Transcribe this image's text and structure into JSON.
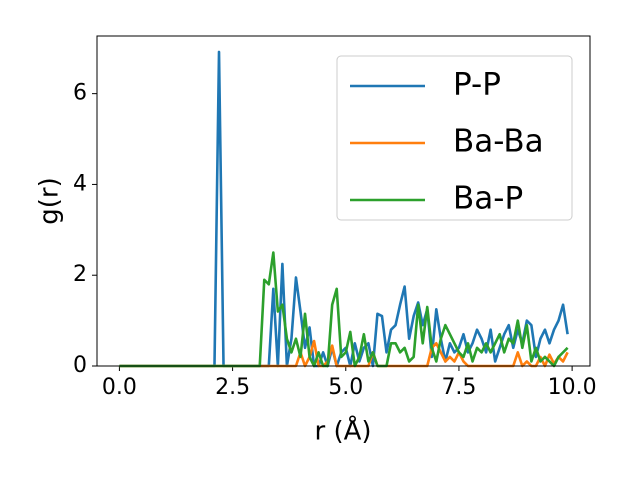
{
  "chart_data": {
    "type": "line",
    "xlabel": "r (Å)",
    "ylabel": "g(r)",
    "x": [
      0,
      0.1,
      0.2,
      0.3,
      0.4,
      0.5,
      0.6,
      0.7,
      0.8,
      0.9,
      1,
      1.1,
      1.2,
      1.3,
      1.4,
      1.5,
      1.6,
      1.7,
      1.8,
      1.9,
      2,
      2.1,
      2.2,
      2.3,
      2.4,
      2.5,
      2.6,
      2.7,
      2.8,
      2.9,
      3,
      3.1,
      3.2,
      3.3,
      3.4,
      3.5,
      3.6,
      3.7,
      3.8,
      3.9,
      4,
      4.1,
      4.2,
      4.3,
      4.4,
      4.5,
      4.6,
      4.7,
      4.8,
      4.9,
      5,
      5.1,
      5.2,
      5.3,
      5.4,
      5.5,
      5.6,
      5.7,
      5.8,
      5.9,
      6,
      6.1,
      6.2,
      6.3,
      6.4,
      6.5,
      6.6,
      6.7,
      6.8,
      6.9,
      7,
      7.1,
      7.2,
      7.3,
      7.4,
      7.5,
      7.6,
      7.7,
      7.8,
      7.9,
      8,
      8.1,
      8.2,
      8.3,
      8.4,
      8.5,
      8.6,
      8.7,
      8.8,
      8.9,
      9,
      9.1,
      9.2,
      9.3,
      9.4,
      9.5,
      9.6,
      9.7,
      9.8,
      9.9
    ],
    "series": [
      {
        "name": "P-P",
        "color": "#1f77b4",
        "values": [
          0,
          0,
          0,
          0,
          0,
          0,
          0,
          0,
          0,
          0,
          0,
          0,
          0,
          0,
          0,
          0,
          0,
          0,
          0,
          0,
          0,
          0,
          6.92,
          0,
          0,
          0,
          0,
          0,
          0,
          0,
          0,
          0,
          0,
          0,
          1.7,
          0,
          2.25,
          0,
          0.6,
          1.95,
          1.2,
          0.4,
          0.85,
          0,
          0,
          0.3,
          0,
          0.4,
          0,
          0.3,
          0.4,
          0,
          0.5,
          0.1,
          0.4,
          0.5,
          0,
          1.15,
          1.1,
          0.3,
          0.8,
          0.9,
          1.35,
          1.75,
          0.6,
          1.1,
          1.4,
          0.9,
          1.25,
          0.2,
          1.25,
          0.6,
          0.1,
          0.5,
          0.3,
          0.4,
          0.7,
          0.3,
          0.5,
          0.8,
          0.6,
          0.3,
          0.8,
          0.1,
          0.4,
          0.7,
          0.9,
          0.4,
          0.8,
          0.5,
          1.0,
          0.9,
          0.2,
          0.6,
          0.8,
          0.5,
          0.8,
          1.0,
          1.35,
          0.7
        ]
      },
      {
        "name": "Ba-Ba",
        "color": "#ff7f0e",
        "values": [
          0,
          0,
          0,
          0,
          0,
          0,
          0,
          0,
          0,
          0,
          0,
          0,
          0,
          0,
          0,
          0,
          0,
          0,
          0,
          0,
          0,
          0,
          0,
          0,
          0,
          0,
          0,
          0,
          0,
          0,
          0,
          0,
          0,
          0,
          0,
          0,
          0,
          0,
          0,
          0,
          0.3,
          0,
          0.2,
          0.55,
          0,
          0,
          0.1,
          0.45,
          0,
          0,
          0,
          0,
          0,
          0,
          0,
          0,
          0.3,
          0,
          0,
          0,
          0,
          0,
          0,
          0,
          0,
          0,
          0,
          0,
          0,
          0.4,
          0.5,
          0.3,
          0.1,
          0.2,
          0.1,
          0.3,
          0.1,
          0,
          0,
          0,
          0,
          0,
          0,
          0,
          0,
          0,
          0,
          0,
          0.3,
          0,
          0.1,
          0,
          0,
          0.2,
          0,
          0.25,
          0.05,
          0.2,
          0.1,
          0.3
        ]
      },
      {
        "name": "Ba-P",
        "color": "#2ca02c",
        "values": [
          0,
          0,
          0,
          0,
          0,
          0,
          0,
          0,
          0,
          0,
          0,
          0,
          0,
          0,
          0,
          0,
          0,
          0,
          0,
          0,
          0,
          0,
          0,
          0,
          0,
          0,
          0,
          0,
          0,
          0,
          0,
          0,
          1.9,
          1.8,
          2.5,
          1.2,
          1.35,
          0.6,
          0.3,
          0.6,
          0.2,
          1.15,
          0.2,
          0,
          0.3,
          0,
          0,
          1.35,
          1.7,
          0.2,
          0.3,
          0.75,
          0,
          0.2,
          0.7,
          0.1,
          0.3,
          0,
          0,
          0,
          0.5,
          0.5,
          0.3,
          0.4,
          0.1,
          0.2,
          1.35,
          0.5,
          1.3,
          0.4,
          0.1,
          0.6,
          0.9,
          0.7,
          0.5,
          0.3,
          0.2,
          0.5,
          0.1,
          0.4,
          0.3,
          0.5,
          0.3,
          0.5,
          0.7,
          0.3,
          0.6,
          0.5,
          1.0,
          0.4,
          0.9,
          0.1,
          0.4,
          0.1,
          0.2,
          0.1,
          0,
          0.2,
          0.3,
          0.4
        ]
      }
    ],
    "xlim": [
      -0.495,
      10.395
    ],
    "ylim": [
      0,
      7.27
    ],
    "xticks": [
      {
        "value": 0,
        "label": "0.0"
      },
      {
        "value": 2.5,
        "label": "2.5"
      },
      {
        "value": 5,
        "label": "5.0"
      },
      {
        "value": 7.5,
        "label": "7.5"
      },
      {
        "value": 10,
        "label": "10.0"
      }
    ],
    "yticks": [
      0,
      2,
      4,
      6
    ],
    "grid": false,
    "legend": "upper right"
  }
}
